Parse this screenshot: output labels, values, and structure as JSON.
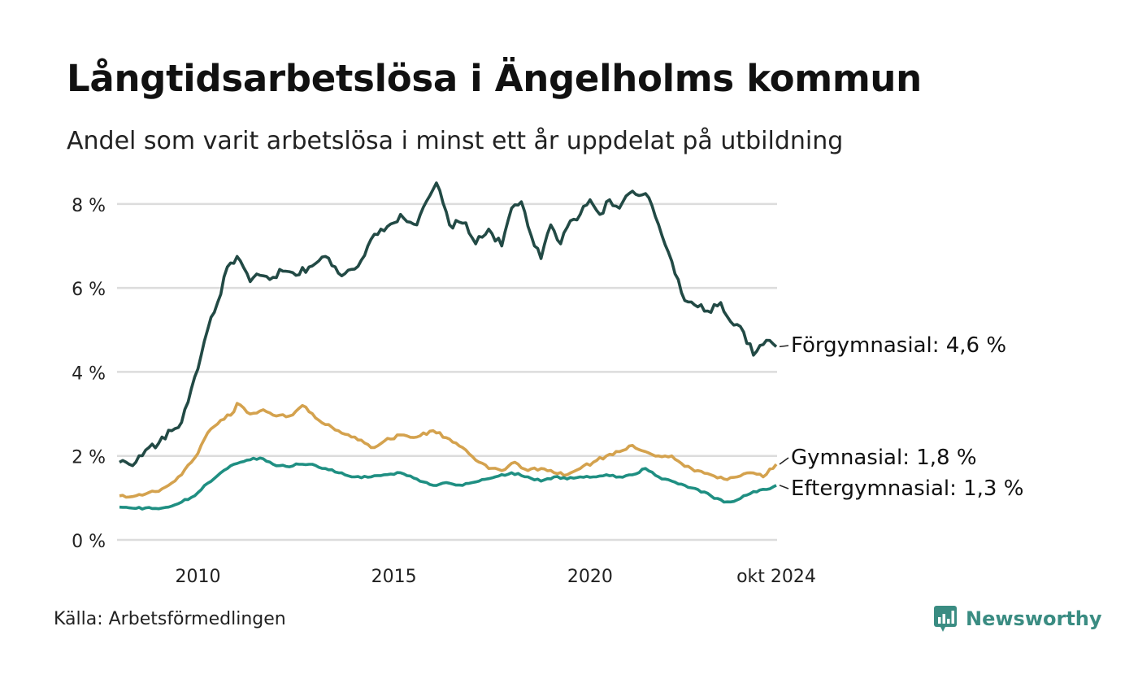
{
  "title": "Långtidsarbetslösa i Ängelholms kommun",
  "subtitle": "Andel som varit arbetslösa i minst ett år uppdelat på utbildning",
  "source": "Källa: Arbetsförmedlingen",
  "brand": {
    "name": "Newsworthy",
    "icon": "newsworthy-logo-icon"
  },
  "chart_data": {
    "type": "line",
    "x_start": "2008-01",
    "x_end": "2024-10",
    "interval": "monthly",
    "ylim": [
      0,
      8.5
    ],
    "y_ticks": [
      0,
      2,
      4,
      6,
      8
    ],
    "y_tick_labels": [
      "0 %",
      "2 %",
      "4 %",
      "6 %",
      "8 %"
    ],
    "x_ticks": [
      "2010-01",
      "2015-01",
      "2020-01",
      "2024-10"
    ],
    "x_tick_labels": [
      "2010",
      "2015",
      "2020",
      "okt 2024"
    ],
    "grid": true,
    "legend": "end-labels",
    "series": [
      {
        "name": "Förgymnasial",
        "end_label": "Förgymnasial: 4,6 %",
        "color": "#224a45",
        "keypoints": [
          [
            "2008-01",
            1.85
          ],
          [
            "2008-06",
            1.85
          ],
          [
            "2008-10",
            2.2
          ],
          [
            "2009-01",
            2.3
          ],
          [
            "2009-05",
            2.6
          ],
          [
            "2009-08",
            2.8
          ],
          [
            "2009-11",
            3.6
          ],
          [
            "2010-02",
            4.4
          ],
          [
            "2010-05",
            5.3
          ],
          [
            "2010-08",
            5.85
          ],
          [
            "2010-10",
            6.5
          ],
          [
            "2011-01",
            6.75
          ],
          [
            "2011-05",
            6.15
          ],
          [
            "2011-08",
            6.3
          ],
          [
            "2011-11",
            6.2
          ],
          [
            "2012-03",
            6.4
          ],
          [
            "2012-07",
            6.3
          ],
          [
            "2012-11",
            6.5
          ],
          [
            "2013-04",
            6.75
          ],
          [
            "2013-08",
            6.35
          ],
          [
            "2014-01",
            6.45
          ],
          [
            "2014-05",
            7.0
          ],
          [
            "2014-09",
            7.4
          ],
          [
            "2015-01",
            7.55
          ],
          [
            "2015-03",
            7.75
          ],
          [
            "2015-08",
            7.5
          ],
          [
            "2015-12",
            8.2
          ],
          [
            "2016-02",
            8.5
          ],
          [
            "2016-06",
            7.5
          ],
          [
            "2016-11",
            7.55
          ],
          [
            "2017-02",
            7.05
          ],
          [
            "2017-06",
            7.4
          ],
          [
            "2017-10",
            7.0
          ],
          [
            "2018-01",
            7.9
          ],
          [
            "2018-04",
            8.05
          ],
          [
            "2018-08",
            7.0
          ],
          [
            "2018-10",
            6.7
          ],
          [
            "2019-01",
            7.5
          ],
          [
            "2019-04",
            7.05
          ],
          [
            "2019-07",
            7.6
          ],
          [
            "2019-10",
            7.75
          ],
          [
            "2020-01",
            8.1
          ],
          [
            "2020-04",
            7.75
          ],
          [
            "2020-07",
            8.1
          ],
          [
            "2020-10",
            7.9
          ],
          [
            "2021-01",
            8.25
          ],
          [
            "2021-04",
            8.2
          ],
          [
            "2021-07",
            8.15
          ],
          [
            "2021-10",
            7.5
          ],
          [
            "2022-01",
            6.85
          ],
          [
            "2022-04",
            6.2
          ],
          [
            "2022-06",
            5.7
          ],
          [
            "2022-10",
            5.55
          ],
          [
            "2023-01",
            5.45
          ],
          [
            "2023-05",
            5.65
          ],
          [
            "2023-08",
            5.2
          ],
          [
            "2023-12",
            4.95
          ],
          [
            "2024-03",
            4.4
          ],
          [
            "2024-06",
            4.65
          ],
          [
            "2024-08",
            4.75
          ],
          [
            "2024-10",
            4.6
          ]
        ]
      },
      {
        "name": "Gymnasial",
        "end_label": "Gymnasial: 1,8 %",
        "color": "#d4a24e",
        "keypoints": [
          [
            "2008-01",
            1.05
          ],
          [
            "2008-06",
            1.05
          ],
          [
            "2008-12",
            1.15
          ],
          [
            "2009-04",
            1.3
          ],
          [
            "2009-08",
            1.55
          ],
          [
            "2009-12",
            1.95
          ],
          [
            "2010-04",
            2.55
          ],
          [
            "2010-08",
            2.85
          ],
          [
            "2010-12",
            3.05
          ],
          [
            "2011-01",
            3.25
          ],
          [
            "2011-05",
            3.0
          ],
          [
            "2011-09",
            3.1
          ],
          [
            "2012-01",
            2.95
          ],
          [
            "2012-05",
            2.95
          ],
          [
            "2012-09",
            3.2
          ],
          [
            "2013-02",
            2.85
          ],
          [
            "2013-08",
            2.6
          ],
          [
            "2014-01",
            2.45
          ],
          [
            "2014-06",
            2.2
          ],
          [
            "2014-10",
            2.35
          ],
          [
            "2015-03",
            2.5
          ],
          [
            "2015-08",
            2.45
          ],
          [
            "2016-01",
            2.6
          ],
          [
            "2016-06",
            2.4
          ],
          [
            "2016-10",
            2.2
          ],
          [
            "2017-02",
            1.9
          ],
          [
            "2017-06",
            1.7
          ],
          [
            "2017-10",
            1.65
          ],
          [
            "2018-02",
            1.85
          ],
          [
            "2018-06",
            1.65
          ],
          [
            "2018-10",
            1.7
          ],
          [
            "2019-02",
            1.6
          ],
          [
            "2019-06",
            1.55
          ],
          [
            "2019-10",
            1.7
          ],
          [
            "2020-02",
            1.85
          ],
          [
            "2020-06",
            2.0
          ],
          [
            "2020-10",
            2.1
          ],
          [
            "2021-02",
            2.25
          ],
          [
            "2021-06",
            2.1
          ],
          [
            "2021-10",
            2.0
          ],
          [
            "2022-02",
            2.0
          ],
          [
            "2022-06",
            1.75
          ],
          [
            "2022-10",
            1.65
          ],
          [
            "2023-02",
            1.55
          ],
          [
            "2023-06",
            1.45
          ],
          [
            "2023-10",
            1.5
          ],
          [
            "2024-02",
            1.6
          ],
          [
            "2024-06",
            1.5
          ],
          [
            "2024-10",
            1.8
          ]
        ]
      },
      {
        "name": "Eftergymnasial",
        "end_label": "Eftergymnasial: 1,3 %",
        "color": "#1f8f82",
        "keypoints": [
          [
            "2008-01",
            0.78
          ],
          [
            "2008-06",
            0.75
          ],
          [
            "2008-12",
            0.75
          ],
          [
            "2009-04",
            0.78
          ],
          [
            "2009-08",
            0.9
          ],
          [
            "2009-12",
            1.05
          ],
          [
            "2010-04",
            1.35
          ],
          [
            "2010-08",
            1.6
          ],
          [
            "2010-12",
            1.8
          ],
          [
            "2011-04",
            1.9
          ],
          [
            "2011-08",
            1.95
          ],
          [
            "2011-12",
            1.8
          ],
          [
            "2012-04",
            1.75
          ],
          [
            "2012-08",
            1.8
          ],
          [
            "2012-12",
            1.8
          ],
          [
            "2013-04",
            1.7
          ],
          [
            "2013-08",
            1.6
          ],
          [
            "2014-01",
            1.5
          ],
          [
            "2014-06",
            1.5
          ],
          [
            "2014-10",
            1.55
          ],
          [
            "2015-03",
            1.6
          ],
          [
            "2015-08",
            1.45
          ],
          [
            "2016-01",
            1.3
          ],
          [
            "2016-06",
            1.35
          ],
          [
            "2016-10",
            1.3
          ],
          [
            "2017-03",
            1.4
          ],
          [
            "2017-08",
            1.5
          ],
          [
            "2018-01",
            1.6
          ],
          [
            "2018-06",
            1.5
          ],
          [
            "2018-10",
            1.4
          ],
          [
            "2019-02",
            1.5
          ],
          [
            "2019-06",
            1.45
          ],
          [
            "2019-10",
            1.5
          ],
          [
            "2020-02",
            1.5
          ],
          [
            "2020-06",
            1.55
          ],
          [
            "2020-10",
            1.5
          ],
          [
            "2021-02",
            1.55
          ],
          [
            "2021-06",
            1.7
          ],
          [
            "2021-10",
            1.5
          ],
          [
            "2022-02",
            1.4
          ],
          [
            "2022-06",
            1.3
          ],
          [
            "2022-10",
            1.2
          ],
          [
            "2023-02",
            1.05
          ],
          [
            "2023-06",
            0.9
          ],
          [
            "2023-10",
            0.95
          ],
          [
            "2024-03",
            1.15
          ],
          [
            "2024-07",
            1.2
          ],
          [
            "2024-10",
            1.3
          ]
        ]
      }
    ]
  }
}
